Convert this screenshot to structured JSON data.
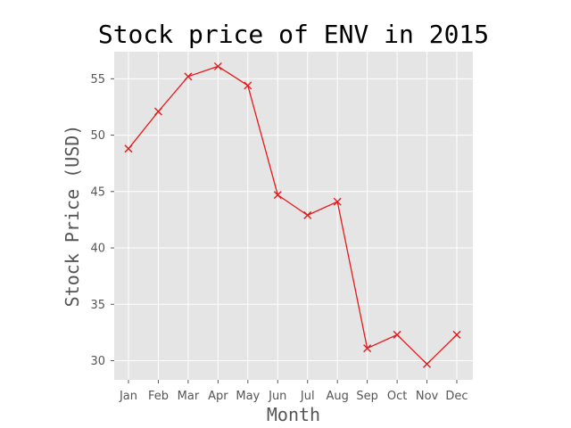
{
  "chart_data": {
    "type": "line",
    "title": "Stock price of ENV in 2015",
    "xlabel": "Month",
    "ylabel": "Stock Price (USD)",
    "categories": [
      "Jan",
      "Feb",
      "Mar",
      "Apr",
      "May",
      "Jun",
      "Jul",
      "Aug",
      "Sep",
      "Oct",
      "Nov",
      "Dec"
    ],
    "series": [
      {
        "values": [
          48.8,
          52.1,
          55.2,
          56.1,
          54.4,
          44.7,
          42.9,
          44.1,
          31.1,
          32.3,
          29.7,
          32.3
        ],
        "color": "#e41a1c",
        "marker": "x"
      }
    ],
    "ylim": [
      28.3,
      57.4
    ],
    "yticks": [
      30,
      35,
      40,
      45,
      50,
      55
    ],
    "ytick_labels": [
      "30",
      "35",
      "40",
      "45",
      "50",
      "55"
    ],
    "grid": true,
    "style": {
      "background": "#e5e5e5",
      "grid_color": "#ffffff",
      "tick_color": "#555555"
    }
  }
}
